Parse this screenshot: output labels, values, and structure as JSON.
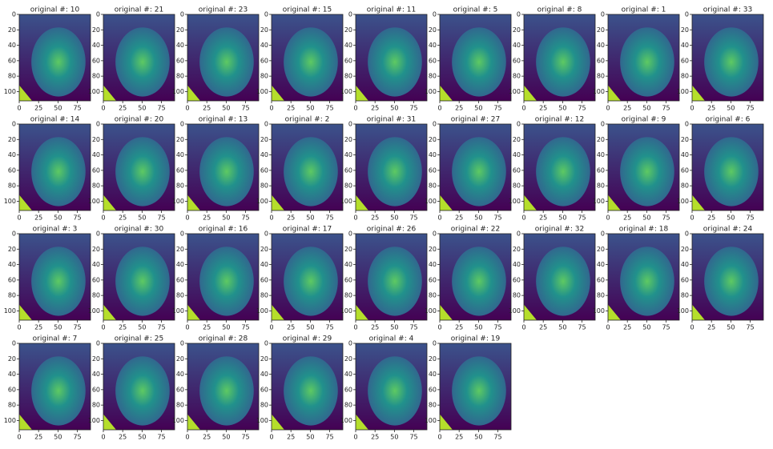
{
  "chart_data": [
    {
      "type": "image",
      "title": "original #: 10",
      "xlim": [
        0,
        92
      ],
      "ylim": [
        112,
        0
      ],
      "xticks": [
        0,
        25,
        50,
        75
      ],
      "yticks": [
        0,
        20,
        40,
        60,
        80,
        100
      ]
    },
    {
      "type": "image",
      "title": "original #: 21",
      "xlim": [
        0,
        92
      ],
      "ylim": [
        112,
        0
      ],
      "xticks": [
        0,
        25,
        50,
        75
      ],
      "yticks": [
        0,
        20,
        40,
        60,
        80,
        100
      ]
    },
    {
      "type": "image",
      "title": "original #: 23",
      "xlim": [
        0,
        92
      ],
      "ylim": [
        112,
        0
      ],
      "xticks": [
        0,
        25,
        50,
        75
      ],
      "yticks": [
        0,
        20,
        40,
        60,
        80,
        100
      ]
    },
    {
      "type": "image",
      "title": "original #: 15",
      "xlim": [
        0,
        92
      ],
      "ylim": [
        112,
        0
      ],
      "xticks": [
        0,
        25,
        50,
        75
      ],
      "yticks": [
        0,
        20,
        40,
        60,
        80,
        100
      ]
    },
    {
      "type": "image",
      "title": "original #: 11",
      "xlim": [
        0,
        92
      ],
      "ylim": [
        112,
        0
      ],
      "xticks": [
        0,
        25,
        50,
        75
      ],
      "yticks": [
        0,
        20,
        40,
        60,
        80,
        100
      ]
    },
    {
      "type": "image",
      "title": "original #: 5",
      "xlim": [
        0,
        92
      ],
      "ylim": [
        112,
        0
      ],
      "xticks": [
        0,
        25,
        50,
        75
      ],
      "yticks": [
        0,
        20,
        40,
        60,
        80,
        100
      ]
    },
    {
      "type": "image",
      "title": "original #: 8",
      "xlim": [
        0,
        92
      ],
      "ylim": [
        112,
        0
      ],
      "xticks": [
        0,
        25,
        50,
        75
      ],
      "yticks": [
        0,
        20,
        40,
        60,
        80,
        100
      ]
    },
    {
      "type": "image",
      "title": "original #: 1",
      "xlim": [
        0,
        92
      ],
      "ylim": [
        112,
        0
      ],
      "xticks": [
        0,
        25,
        50,
        75
      ],
      "yticks": [
        0,
        20,
        40,
        60,
        80,
        100
      ]
    },
    {
      "type": "image",
      "title": "original #: 33",
      "xlim": [
        0,
        92
      ],
      "ylim": [
        112,
        0
      ],
      "xticks": [
        0,
        25,
        50,
        75
      ],
      "yticks": [
        0,
        20,
        40,
        60,
        80,
        100
      ]
    },
    {
      "type": "image",
      "title": "original #: 14",
      "xlim": [
        0,
        92
      ],
      "ylim": [
        112,
        0
      ],
      "xticks": [
        0,
        25,
        50,
        75
      ],
      "yticks": [
        0,
        20,
        40,
        60,
        80,
        100
      ]
    },
    {
      "type": "image",
      "title": "original #: 20",
      "xlim": [
        0,
        92
      ],
      "ylim": [
        112,
        0
      ],
      "xticks": [
        0,
        25,
        50,
        75
      ],
      "yticks": [
        0,
        20,
        40,
        60,
        80,
        100
      ]
    },
    {
      "type": "image",
      "title": "original #: 13",
      "xlim": [
        0,
        92
      ],
      "ylim": [
        112,
        0
      ],
      "xticks": [
        0,
        25,
        50,
        75
      ],
      "yticks": [
        0,
        20,
        40,
        60,
        80,
        100
      ]
    },
    {
      "type": "image",
      "title": "original #: 2",
      "xlim": [
        0,
        92
      ],
      "ylim": [
        112,
        0
      ],
      "xticks": [
        0,
        25,
        50,
        75
      ],
      "yticks": [
        0,
        20,
        40,
        60,
        80,
        100
      ]
    },
    {
      "type": "image",
      "title": "original #: 31",
      "xlim": [
        0,
        92
      ],
      "ylim": [
        112,
        0
      ],
      "xticks": [
        0,
        25,
        50,
        75
      ],
      "yticks": [
        0,
        20,
        40,
        60,
        80,
        100
      ]
    },
    {
      "type": "image",
      "title": "original #: 27",
      "xlim": [
        0,
        92
      ],
      "ylim": [
        112,
        0
      ],
      "xticks": [
        0,
        25,
        50,
        75
      ],
      "yticks": [
        0,
        20,
        40,
        60,
        80,
        100
      ]
    },
    {
      "type": "image",
      "title": "original #: 12",
      "xlim": [
        0,
        92
      ],
      "ylim": [
        112,
        0
      ],
      "xticks": [
        0,
        25,
        50,
        75
      ],
      "yticks": [
        0,
        20,
        40,
        60,
        80,
        100
      ]
    },
    {
      "type": "image",
      "title": "original #: 9",
      "xlim": [
        0,
        92
      ],
      "ylim": [
        112,
        0
      ],
      "xticks": [
        0,
        25,
        50,
        75
      ],
      "yticks": [
        0,
        20,
        40,
        60,
        80,
        100
      ]
    },
    {
      "type": "image",
      "title": "original #: 6",
      "xlim": [
        0,
        92
      ],
      "ylim": [
        112,
        0
      ],
      "xticks": [
        0,
        25,
        50,
        75
      ],
      "yticks": [
        0,
        20,
        40,
        60,
        80,
        100
      ]
    },
    {
      "type": "image",
      "title": "original #: 3",
      "xlim": [
        0,
        92
      ],
      "ylim": [
        112,
        0
      ],
      "xticks": [
        0,
        25,
        50,
        75
      ],
      "yticks": [
        0,
        20,
        40,
        60,
        80,
        100
      ]
    },
    {
      "type": "image",
      "title": "original #: 30",
      "xlim": [
        0,
        92
      ],
      "ylim": [
        112,
        0
      ],
      "xticks": [
        0,
        25,
        50,
        75
      ],
      "yticks": [
        0,
        20,
        40,
        60,
        80,
        100
      ]
    },
    {
      "type": "image",
      "title": "original #: 16",
      "xlim": [
        0,
        92
      ],
      "ylim": [
        112,
        0
      ],
      "xticks": [
        0,
        25,
        50,
        75
      ],
      "yticks": [
        0,
        20,
        40,
        60,
        80,
        100
      ]
    },
    {
      "type": "image",
      "title": "original #: 17",
      "xlim": [
        0,
        92
      ],
      "ylim": [
        112,
        0
      ],
      "xticks": [
        0,
        25,
        50,
        75
      ],
      "yticks": [
        0,
        20,
        40,
        60,
        80,
        100
      ]
    },
    {
      "type": "image",
      "title": "original #: 26",
      "xlim": [
        0,
        92
      ],
      "ylim": [
        112,
        0
      ],
      "xticks": [
        0,
        25,
        50,
        75
      ],
      "yticks": [
        0,
        20,
        40,
        60,
        80,
        100
      ]
    },
    {
      "type": "image",
      "title": "original #: 22",
      "xlim": [
        0,
        92
      ],
      "ylim": [
        112,
        0
      ],
      "xticks": [
        0,
        25,
        50,
        75
      ],
      "yticks": [
        0,
        20,
        40,
        60,
        80,
        100
      ]
    },
    {
      "type": "image",
      "title": "original #: 32",
      "xlim": [
        0,
        92
      ],
      "ylim": [
        112,
        0
      ],
      "xticks": [
        0,
        25,
        50,
        75
      ],
      "yticks": [
        0,
        20,
        40,
        60,
        80,
        100
      ]
    },
    {
      "type": "image",
      "title": "original #: 18",
      "xlim": [
        0,
        92
      ],
      "ylim": [
        112,
        0
      ],
      "xticks": [
        0,
        25,
        50,
        75
      ],
      "yticks": [
        0,
        20,
        40,
        60,
        80,
        100
      ]
    },
    {
      "type": "image",
      "title": "original #: 24",
      "xlim": [
        0,
        92
      ],
      "ylim": [
        112,
        0
      ],
      "xticks": [
        0,
        25,
        50,
        75
      ],
      "yticks": [
        0,
        20,
        40,
        60,
        80,
        100
      ]
    },
    {
      "type": "image",
      "title": "original #: 7",
      "xlim": [
        0,
        92
      ],
      "ylim": [
        112,
        0
      ],
      "xticks": [
        0,
        25,
        50,
        75
      ],
      "yticks": [
        0,
        20,
        40,
        60,
        80,
        100
      ]
    },
    {
      "type": "image",
      "title": "original #: 25",
      "xlim": [
        0,
        92
      ],
      "ylim": [
        112,
        0
      ],
      "xticks": [
        0,
        25,
        50,
        75
      ],
      "yticks": [
        0,
        20,
        40,
        60,
        80,
        100
      ]
    },
    {
      "type": "image",
      "title": "original #: 28",
      "xlim": [
        0,
        92
      ],
      "ylim": [
        112,
        0
      ],
      "xticks": [
        0,
        25,
        50,
        75
      ],
      "yticks": [
        0,
        20,
        40,
        60,
        80,
        100
      ]
    },
    {
      "type": "image",
      "title": "original #: 29",
      "xlim": [
        0,
        92
      ],
      "ylim": [
        112,
        0
      ],
      "xticks": [
        0,
        25,
        50,
        75
      ],
      "yticks": [
        0,
        20,
        40,
        60,
        80,
        100
      ]
    },
    {
      "type": "image",
      "title": "original #: 4",
      "xlim": [
        0,
        92
      ],
      "ylim": [
        112,
        0
      ],
      "xticks": [
        0,
        25,
        50,
        75
      ],
      "yticks": [
        0,
        20,
        40,
        60,
        80,
        100
      ]
    },
    {
      "type": "image",
      "title": "original #: 19",
      "xlim": [
        0,
        92
      ],
      "ylim": [
        112,
        0
      ],
      "xticks": [
        0,
        25,
        50,
        75
      ],
      "yticks": [
        0,
        20,
        40,
        60,
        80,
        100
      ]
    }
  ]
}
